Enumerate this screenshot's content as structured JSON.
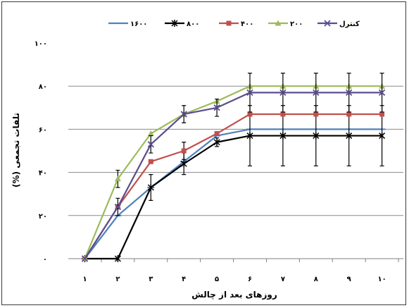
{
  "chart_data": {
    "type": "line",
    "xlabel": "روزهای بعد از چالش",
    "ylabel": "تلفات تجمعی (%)",
    "x": [
      1,
      2,
      3,
      4,
      5,
      6,
      7,
      8,
      9,
      10
    ],
    "x_tick_labels": [
      "۱",
      "۲",
      "۳",
      "۴",
      "۵",
      "۶",
      "۷",
      "۸",
      "۹",
      "۱۰"
    ],
    "ylim": [
      0,
      100
    ],
    "y_ticks": [
      0,
      20,
      40,
      60,
      80,
      100
    ],
    "y_tick_labels": [
      "۰",
      "۲۰",
      "۴۰",
      "۶۰",
      "۸۰",
      "۱۰۰"
    ],
    "grid": "horizontal",
    "legend_position": "top",
    "series": [
      {
        "name": "۱۶۰۰",
        "color": "#4f81bd",
        "marker": "dash",
        "values": [
          0,
          20,
          33,
          45,
          57,
          60,
          60,
          60,
          60,
          60
        ],
        "errors": [
          0,
          0,
          0,
          0,
          0,
          0,
          0,
          0,
          0,
          0
        ]
      },
      {
        "name": "۸۰۰",
        "color": "#000000",
        "marker": "star",
        "values": [
          0,
          0,
          33,
          44,
          54,
          57,
          57,
          57,
          57,
          57
        ],
        "errors": [
          0,
          0,
          6,
          5,
          2,
          14,
          14,
          14,
          14,
          14
        ]
      },
      {
        "name": "۴۰۰",
        "color": "#c0504d",
        "marker": "square",
        "values": [
          0,
          24,
          45,
          50,
          58,
          67,
          67,
          67,
          67,
          67
        ],
        "errors": [
          0,
          0,
          0,
          4,
          0,
          0,
          0,
          0,
          0,
          0
        ]
      },
      {
        "name": "۲۰۰",
        "color": "#9bbb59",
        "marker": "triangle",
        "values": [
          0,
          37,
          58,
          67,
          73,
          80,
          80,
          80,
          80,
          80
        ],
        "errors": [
          0,
          4,
          0,
          0,
          0,
          0,
          0,
          0,
          0,
          0
        ]
      },
      {
        "name": "کنترل",
        "color": "#5a4d8e",
        "marker": "x",
        "values": [
          0,
          24,
          53,
          67,
          70,
          77,
          77,
          77,
          77,
          77
        ],
        "errors": [
          0,
          4,
          4,
          4,
          4,
          9,
          9,
          9,
          9,
          9
        ]
      }
    ]
  }
}
